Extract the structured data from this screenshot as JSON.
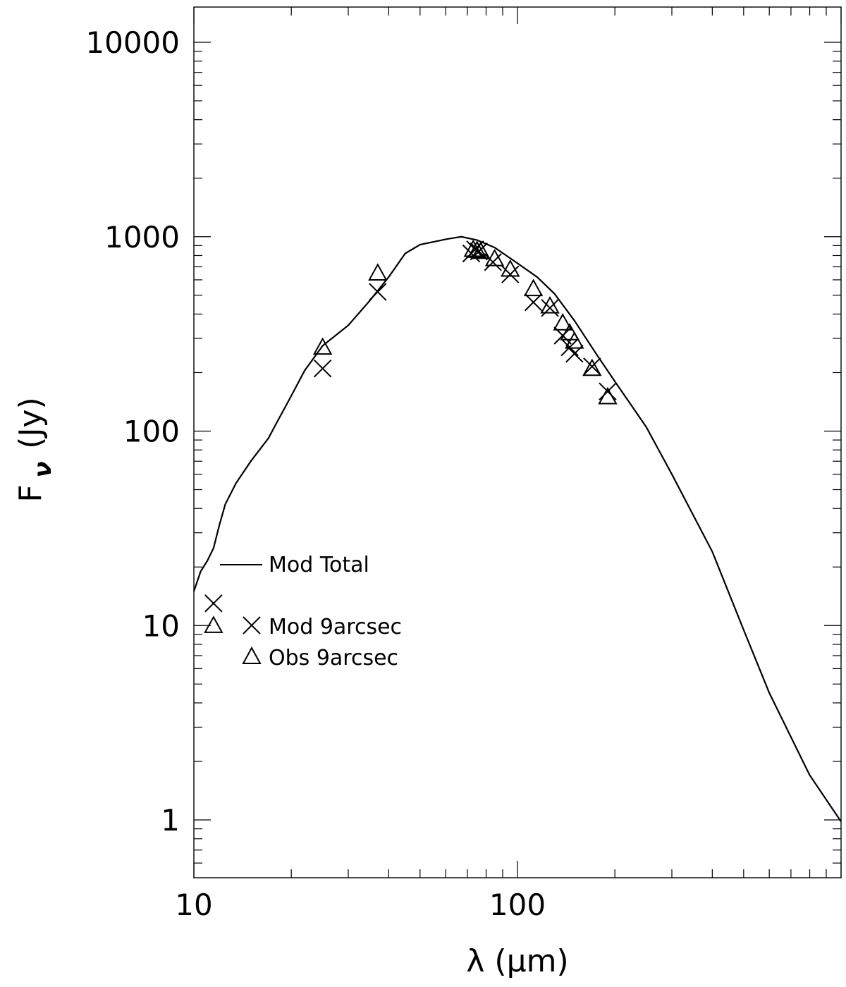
{
  "chart_data": {
    "type": "line",
    "xscale": "log",
    "yscale": "log",
    "xlim": [
      10,
      1000
    ],
    "ylim": [
      0.5,
      15000
    ],
    "xlabel": "λ (μm)",
    "ylabel_main": "F",
    "ylabel_sub": "ν",
    "ylabel_unit": "(Jy)",
    "x_tick_labels": [
      {
        "value": 10,
        "label": "10"
      },
      {
        "value": 100,
        "label": "100"
      }
    ],
    "y_tick_labels": [
      {
        "value": 1,
        "label": "1"
      },
      {
        "value": 10,
        "label": "10"
      },
      {
        "value": 100,
        "label": "100"
      },
      {
        "value": 1000,
        "label": "1000"
      },
      {
        "value": 10000,
        "label": "10000"
      }
    ],
    "grid": false,
    "legend_position": "left",
    "series": [
      {
        "name": "Mod Total",
        "style": "line",
        "points": [
          [
            10,
            15
          ],
          [
            10.5,
            19
          ],
          [
            11,
            21.5
          ],
          [
            11.5,
            25
          ],
          [
            12,
            33
          ],
          [
            12.5,
            42
          ],
          [
            13.5,
            54
          ],
          [
            15,
            70
          ],
          [
            17,
            92
          ],
          [
            18,
            110
          ],
          [
            20,
            152
          ],
          [
            22,
            205
          ],
          [
            25,
            275
          ],
          [
            30,
            350
          ],
          [
            35,
            470
          ],
          [
            40,
            620
          ],
          [
            45,
            820
          ],
          [
            50,
            910
          ],
          [
            60,
            970
          ],
          [
            67,
            1000
          ],
          [
            75,
            960
          ],
          [
            85,
            880
          ],
          [
            100,
            730
          ],
          [
            115,
            620
          ],
          [
            130,
            510
          ],
          [
            150,
            370
          ],
          [
            175,
            250
          ],
          [
            200,
            180
          ],
          [
            250,
            105
          ],
          [
            300,
            60
          ],
          [
            400,
            24
          ],
          [
            500,
            9.5
          ],
          [
            600,
            4.5
          ],
          [
            800,
            1.7
          ],
          [
            1000,
            0.98
          ]
        ]
      },
      {
        "name": "Mod 9arcsec",
        "style": "x",
        "points": [
          [
            11.5,
            13
          ],
          [
            25,
            210
          ],
          [
            37,
            520
          ],
          [
            72,
            820
          ],
          [
            74,
            860
          ],
          [
            76,
            840
          ],
          [
            84,
            740
          ],
          [
            95,
            640
          ],
          [
            112,
            460
          ],
          [
            126,
            430
          ],
          [
            138,
            310
          ],
          [
            145,
            270
          ],
          [
            150,
            250
          ],
          [
            170,
            215
          ],
          [
            190,
            160
          ]
        ]
      },
      {
        "name": "Obs 9arcsec",
        "style": "triangle",
        "points": [
          [
            11.5,
            10
          ],
          [
            25,
            270
          ],
          [
            37,
            650
          ],
          [
            73,
            860
          ],
          [
            75,
            850
          ],
          [
            77,
            840
          ],
          [
            85,
            770
          ],
          [
            95,
            680
          ],
          [
            112,
            540
          ],
          [
            126,
            440
          ],
          [
            138,
            360
          ],
          [
            145,
            320
          ],
          [
            150,
            290
          ],
          [
            170,
            210
          ],
          [
            190,
            150
          ]
        ]
      }
    ],
    "legend": {
      "total_label": "Mod Total",
      "mod_label": "Mod 9arcsec",
      "obs_label": "Obs 9arcsec"
    }
  }
}
